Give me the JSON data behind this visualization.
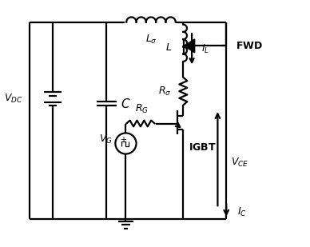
{
  "bg_color": "#ffffff",
  "line_color": "#000000",
  "line_width": 1.6,
  "fig_width": 3.88,
  "fig_height": 3.09,
  "labels": {
    "VDC": "$V_{DC}$",
    "C": "$C$",
    "Lsigma": "$L_{\\sigma}$",
    "L": "$L$",
    "IL": "$I_L$",
    "FWD": "$\\mathbf{FWD}$",
    "Rsigma": "$R_{\\sigma}$",
    "RG": "$R_G$",
    "VG": "$V_G$",
    "IGBT": "$\\mathbf{IGBT}$",
    "VCE": "$V_{CE}$",
    "IC": "$I_C$"
  }
}
